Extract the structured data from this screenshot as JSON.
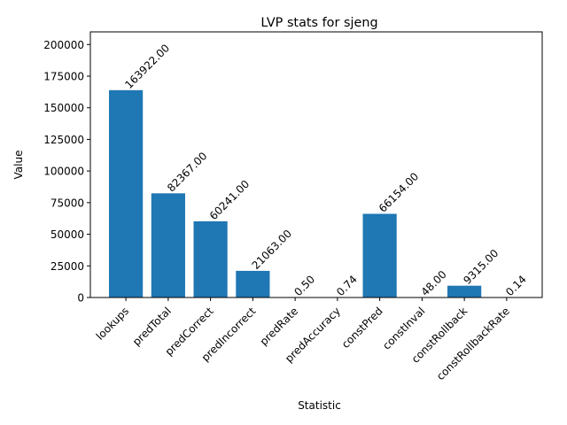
{
  "chart_data": {
    "type": "bar",
    "title": "LVP stats for sjeng",
    "xlabel": "Statistic",
    "ylabel": "Value",
    "categories": [
      "lookups",
      "predTotal",
      "predCorrect",
      "predIncorrect",
      "predRate",
      "predAccuracy",
      "constPred",
      "constInval",
      "constRollback",
      "constRollbackRate"
    ],
    "values": [
      163922.0,
      82367.0,
      60241.0,
      21063.0,
      0.5,
      0.74,
      66154.0,
      48.0,
      9315.0,
      0.14
    ],
    "value_labels": [
      "163922.00",
      "82367.00",
      "60241.00",
      "21063.00",
      "0.50",
      "0.74",
      "66154.00",
      "48.00",
      "9315.00",
      "0.14"
    ],
    "ylim": [
      0,
      210000
    ],
    "yticks": [
      0,
      25000,
      50000,
      75000,
      100000,
      125000,
      150000,
      175000,
      200000
    ],
    "ytick_labels": [
      "0",
      "25000",
      "50000",
      "75000",
      "100000",
      "125000",
      "150000",
      "175000",
      "200000"
    ],
    "grid": false,
    "colors": {
      "bar": "#1f77b4",
      "axis": "#000000",
      "background": "#ffffff"
    }
  }
}
